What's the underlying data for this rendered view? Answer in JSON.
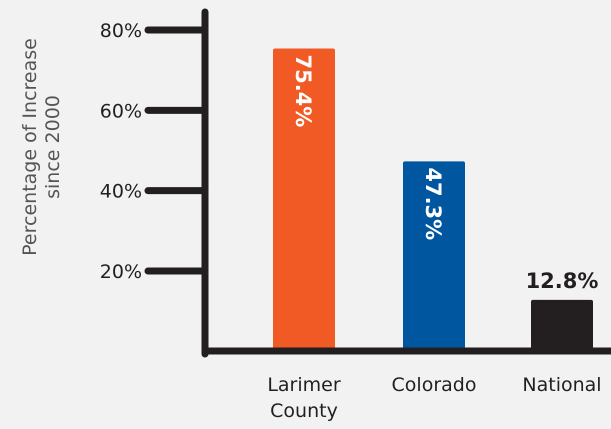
{
  "chart_data": {
    "type": "bar",
    "categories": [
      [
        "Larimer",
        "County"
      ],
      [
        "Colorado"
      ],
      [
        "National"
      ]
    ],
    "values": [
      75.4,
      47.3,
      12.8
    ],
    "data_labels": [
      "75.4%",
      "47.3%",
      "12.8%"
    ],
    "bar_colors": [
      "#f15a24",
      "#0057a0",
      "#231f20"
    ],
    "label_inside_rotated": [
      true,
      true,
      false
    ],
    "label_color": "#ffffff",
    "outside_label_color": "#231f20",
    "axis_color": "#231f20",
    "ylabel_lines": [
      "Percentage of Increase",
      "since 2000"
    ],
    "yticks": [
      20,
      40,
      60,
      80
    ],
    "ytick_labels": [
      "20%",
      "40%",
      "60%",
      "80%"
    ],
    "ylim": [
      0,
      80
    ],
    "grid": false,
    "legend": "none"
  }
}
